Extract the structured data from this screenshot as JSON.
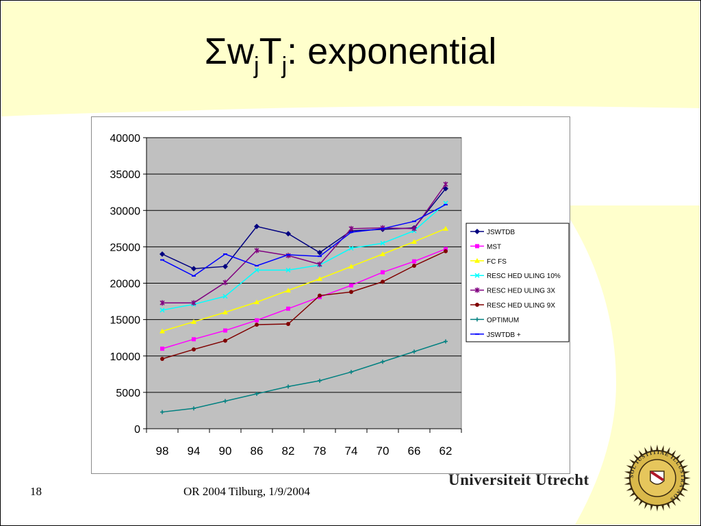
{
  "slide": {
    "title_sigma": "Σ",
    "title_w": "w",
    "title_j1": "j",
    "title_T": "T",
    "title_j2": "j",
    "title_rest": ": exponential",
    "page_number": "18",
    "footer_text": "OR 2004 Tilburg, 1/9/2004",
    "brand_text": "Universiteit Utrecht",
    "seal_text": "SOL IUSTITIAE ILLUSTRA NOS",
    "colors": {
      "background": "#ffffff",
      "accent_yellow": "#ffffcc",
      "plot_area": "#c0c0c0"
    }
  },
  "chart_data": {
    "type": "line",
    "categories": [
      "98",
      "94",
      "90",
      "86",
      "82",
      "78",
      "74",
      "70",
      "66",
      "62"
    ],
    "ylim": [
      0,
      40000
    ],
    "yticks": [
      "0",
      "5000",
      "10000",
      "15000",
      "20000",
      "25000",
      "30000",
      "35000",
      "40000"
    ],
    "grid": "horizontal",
    "legend_position": "right",
    "series": [
      {
        "name": "JSWTDB",
        "color": "#000080",
        "marker": "diamond",
        "values": [
          24000,
          22000,
          22300,
          27800,
          26800,
          24200,
          27200,
          27400,
          27600,
          33000
        ]
      },
      {
        "name": "MST",
        "color": "#ff00ff",
        "marker": "square",
        "values": [
          11000,
          12300,
          13500,
          14900,
          16500,
          18100,
          19700,
          21500,
          23000,
          24700
        ]
      },
      {
        "name": "FC FS",
        "color": "#ffff00",
        "marker": "triangle",
        "values": [
          13400,
          14700,
          16000,
          17400,
          19000,
          20600,
          22300,
          24000,
          25700,
          27500
        ]
      },
      {
        "name": "RESC HED ULING 10%",
        "color": "#00ffff",
        "marker": "cross",
        "values": [
          16300,
          17100,
          18200,
          21800,
          21800,
          22500,
          24800,
          25500,
          27200,
          31000
        ]
      },
      {
        "name": "RESC HED ULING 3X",
        "color": "#800080",
        "marker": "star",
        "values": [
          17300,
          17300,
          20100,
          24500,
          23800,
          22600,
          27500,
          27600,
          27500,
          33600
        ]
      },
      {
        "name": "RESC HED ULING 9X",
        "color": "#800000",
        "marker": "circle",
        "values": [
          9600,
          10900,
          12100,
          14300,
          14400,
          18300,
          18800,
          20200,
          22400,
          24400
        ]
      },
      {
        "name": "OPTIMUM",
        "color": "#008080",
        "marker": "plus",
        "values": [
          2300,
          2800,
          3800,
          4800,
          5800,
          6600,
          7800,
          9200,
          10600,
          12000
        ]
      },
      {
        "name": "JSWTDB +",
        "color": "#0000ff",
        "marker": "dash",
        "values": [
          23200,
          21000,
          24000,
          22400,
          23900,
          23700,
          27000,
          27500,
          28500,
          30800
        ]
      }
    ]
  }
}
